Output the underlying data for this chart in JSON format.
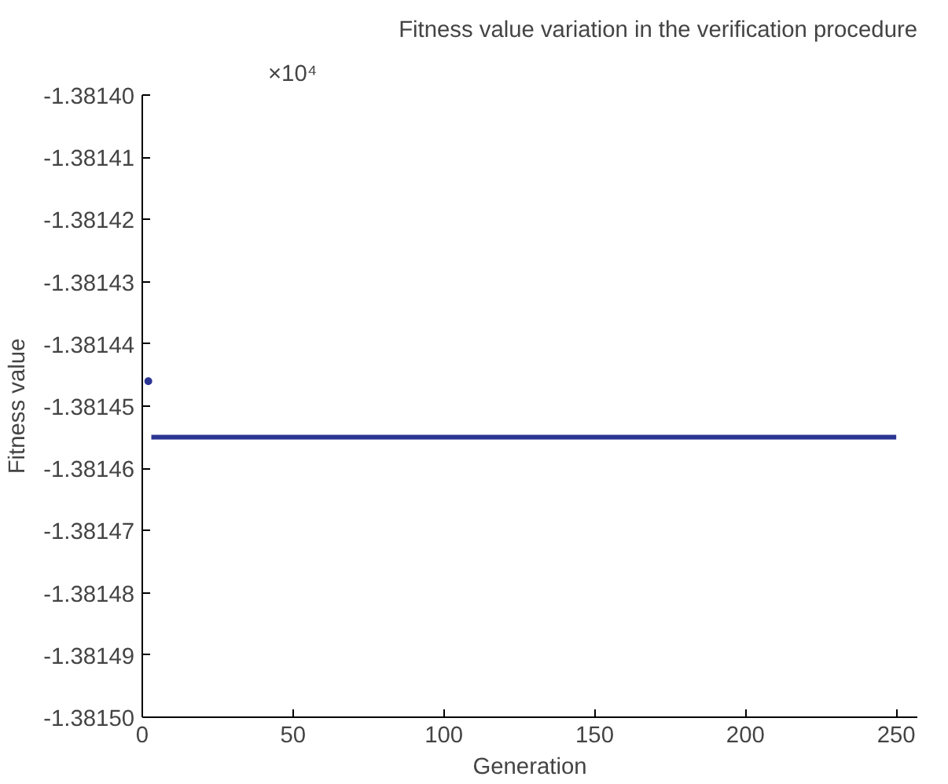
{
  "chart_data": {
    "type": "line",
    "title": "Fitness value variation in the verification procedure",
    "xlabel": "Generation",
    "ylabel": "Fitness value",
    "annotations": [
      "×10⁴"
    ],
    "series": [
      {
        "type": "scatter",
        "x": [
          2
        ],
        "values": [
          -1.381446
        ],
        "color": "#2b3592",
        "marker": "circle"
      },
      {
        "x": [
          3,
          250
        ],
        "values": [
          -1.381455,
          -1.381455
        ],
        "color": "#2b3592"
      }
    ],
    "xlim": [
      0,
      257
    ],
    "xticks": [
      0,
      50,
      100,
      150,
      200,
      250
    ],
    "ylim": [
      -1.3815,
      -1.3814
    ],
    "yticks": [
      {
        "value": -1.3815,
        "label": "-1.38150"
      },
      {
        "value": -1.38149,
        "label": "-1.38149"
      },
      {
        "value": -1.38148,
        "label": "-1.38148"
      },
      {
        "value": -1.38147,
        "label": "-1.38147"
      },
      {
        "value": -1.38146,
        "label": "-1.38146"
      },
      {
        "value": -1.38145,
        "label": "-1.38145"
      },
      {
        "value": -1.38144,
        "label": "-1.38144"
      },
      {
        "value": -1.38143,
        "label": "-1.38143"
      },
      {
        "value": -1.38142,
        "label": "-1.38142"
      },
      {
        "value": -1.38141,
        "label": "-1.38141"
      },
      {
        "value": -1.3814,
        "label": "-1.38140"
      }
    ],
    "grid": false
  }
}
